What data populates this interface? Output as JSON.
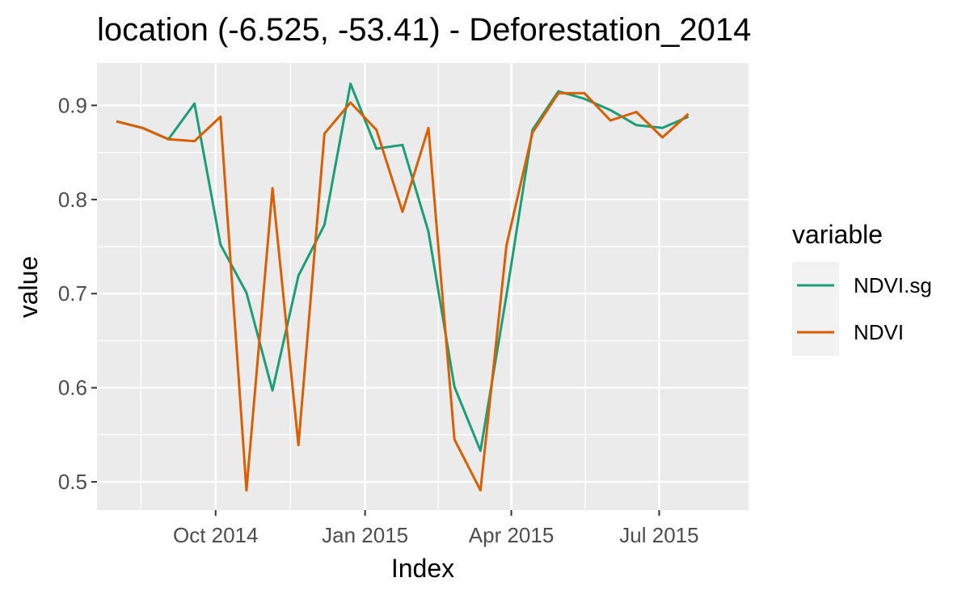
{
  "chart_data": {
    "type": "line",
    "title": "location (-6.525, -53.41) - Deforestation_2014",
    "xlabel": "Index",
    "ylabel": "value",
    "x_ticks": [
      "Oct 2014",
      "Jan 2015",
      "Apr 2015",
      "Jul 2015"
    ],
    "y_ticks": [
      "0.5",
      "0.6",
      "0.7",
      "0.8",
      "0.9"
    ],
    "ylim": [
      0.47,
      0.945
    ],
    "xlim": [
      "2014-07-20",
      "2015-08-25"
    ],
    "grid": true,
    "legend": {
      "title": "variable",
      "position": "right"
    },
    "series": [
      {
        "name": "NDVI.sg",
        "color": "#1b9e77",
        "points": [
          [
            "2014-08-01",
            0.883
          ],
          [
            "2014-08-17",
            0.876
          ],
          [
            "2014-09-02",
            0.864
          ],
          [
            "2014-09-18",
            0.902
          ],
          [
            "2014-10-04",
            0.752
          ],
          [
            "2014-10-20",
            0.701
          ],
          [
            "2014-11-05",
            0.597
          ],
          [
            "2014-11-21",
            0.719
          ],
          [
            "2014-12-07",
            0.773
          ],
          [
            "2014-12-23",
            0.923
          ],
          [
            "2015-01-08",
            0.854
          ],
          [
            "2015-01-24",
            0.858
          ],
          [
            "2015-02-09",
            0.766
          ],
          [
            "2015-02-25",
            0.601
          ],
          [
            "2015-03-13",
            0.533
          ],
          [
            "2015-03-29",
            0.698
          ],
          [
            "2015-04-14",
            0.874
          ],
          [
            "2015-04-30",
            0.915
          ],
          [
            "2015-05-16",
            0.907
          ],
          [
            "2015-06-01",
            0.895
          ],
          [
            "2015-06-17",
            0.879
          ],
          [
            "2015-07-03",
            0.876
          ],
          [
            "2015-07-19",
            0.888
          ]
        ]
      },
      {
        "name": "NDVI",
        "color": "#d95f02",
        "points": [
          [
            "2014-08-01",
            0.883
          ],
          [
            "2014-08-17",
            0.876
          ],
          [
            "2014-09-02",
            0.864
          ],
          [
            "2014-09-18",
            0.862
          ],
          [
            "2014-10-04",
            0.888
          ],
          [
            "2014-10-20",
            0.491
          ],
          [
            "2014-11-05",
            0.812
          ],
          [
            "2014-11-21",
            0.539
          ],
          [
            "2014-12-07",
            0.87
          ],
          [
            "2014-12-23",
            0.903
          ],
          [
            "2015-01-08",
            0.874
          ],
          [
            "2015-01-24",
            0.787
          ],
          [
            "2015-02-09",
            0.876
          ],
          [
            "2015-02-25",
            0.545
          ],
          [
            "2015-03-13",
            0.491
          ],
          [
            "2015-03-29",
            0.751
          ],
          [
            "2015-04-14",
            0.871
          ],
          [
            "2015-04-30",
            0.913
          ],
          [
            "2015-05-16",
            0.913
          ],
          [
            "2015-06-01",
            0.884
          ],
          [
            "2015-06-17",
            0.893
          ],
          [
            "2015-07-03",
            0.866
          ],
          [
            "2015-07-19",
            0.891
          ]
        ]
      }
    ]
  }
}
